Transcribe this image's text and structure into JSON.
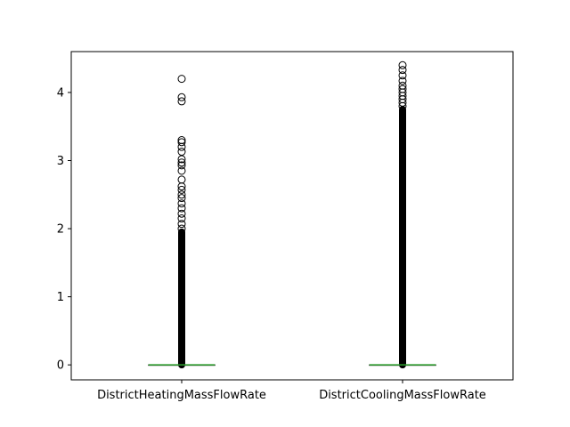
{
  "chart_data": {
    "type": "box",
    "title": "",
    "xlabel": "",
    "ylabel": "",
    "ylim": [
      -0.22,
      4.6
    ],
    "yticks": [
      0,
      1,
      2,
      3,
      4
    ],
    "grid": false,
    "legend": "none",
    "colors": {
      "frame": "#000000",
      "median": "#2ca02c",
      "box": "#000000",
      "flier": "#000000"
    },
    "categories": [
      "DistrictHeatingMassFlowRate",
      "DistrictCoolingMassFlowRate"
    ],
    "boxes": [
      {
        "name": "DistrictHeatingMassFlowRate",
        "whisker_low": 0.0,
        "q1": 0.0,
        "median": 0.0,
        "q3": 0.0,
        "whisker_high": 0.0,
        "flier_band": [
          0.0,
          1.95
        ],
        "fliers": [
          2.0,
          2.07,
          2.15,
          2.22,
          2.3,
          2.37,
          2.45,
          2.5,
          2.57,
          2.62,
          2.72,
          2.85,
          2.93,
          2.97,
          3.02,
          3.13,
          3.2,
          3.27,
          3.3,
          3.87,
          3.93,
          4.2
        ]
      },
      {
        "name": "DistrictCoolingMassFlowRate",
        "whisker_low": 0.0,
        "q1": 0.0,
        "median": 0.0,
        "q3": 0.0,
        "whisker_high": 0.0,
        "flier_band": [
          0.0,
          3.75
        ],
        "fliers": [
          3.8,
          3.85,
          3.9,
          3.95,
          4.0,
          4.05,
          4.1,
          4.17,
          4.25,
          4.33,
          4.4
        ]
      }
    ]
  }
}
